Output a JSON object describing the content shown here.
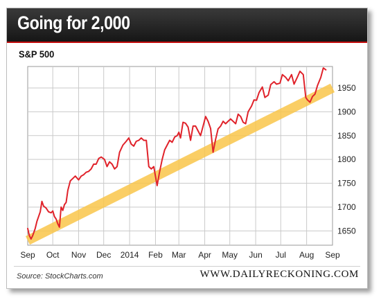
{
  "header": {
    "title": "Going for 2,000"
  },
  "footer": {
    "source": "Source: StockCharts.com",
    "site": "WWW.DAILYRECKONING.COM"
  },
  "colors": {
    "line": "#e0222a",
    "band": "#f9c64a",
    "grid": "#c9c9c9",
    "header_bg": "#1f1f1f",
    "header_rule": "#c40c0c"
  },
  "chart_data": {
    "type": "line",
    "title": "S&P 500",
    "xlabel": "",
    "ylabel": "",
    "x_ticks": [
      "Sep",
      "Oct",
      "Nov",
      "Dec",
      "2014",
      "Feb",
      "Mar",
      "Apr",
      "May",
      "Jun",
      "Jul",
      "Aug",
      "Sep"
    ],
    "y_ticks": [
      1650,
      1700,
      1750,
      1800,
      1850,
      1900,
      1950
    ],
    "xlim": [
      "2013-09-01",
      "2014-09-01"
    ],
    "ylim": [
      1620,
      1995
    ],
    "grid": true,
    "y_axis_side": "right",
    "series": [
      {
        "values": [
          [
            "2013-09-01",
            1655
          ],
          [
            "2013-09-03",
            1640
          ],
          [
            "2013-09-05",
            1633
          ],
          [
            "2013-09-07",
            1640
          ],
          [
            "2013-09-10",
            1655
          ],
          [
            "2013-09-12",
            1670
          ],
          [
            "2013-09-14",
            1680
          ],
          [
            "2013-09-16",
            1690
          ],
          [
            "2013-09-18",
            1712
          ],
          [
            "2013-09-20",
            1702
          ],
          [
            "2013-09-23",
            1698
          ],
          [
            "2013-09-26",
            1690
          ],
          [
            "2013-09-29",
            1688
          ],
          [
            "2013-10-01",
            1692
          ],
          [
            "2013-10-03",
            1680
          ],
          [
            "2013-10-05",
            1675
          ],
          [
            "2013-10-07",
            1665
          ],
          [
            "2013-10-09",
            1658
          ],
          [
            "2013-10-11",
            1700
          ],
          [
            "2013-10-13",
            1693
          ],
          [
            "2013-10-15",
            1705
          ],
          [
            "2013-10-17",
            1710
          ],
          [
            "2013-10-19",
            1735
          ],
          [
            "2013-10-22",
            1755
          ],
          [
            "2013-10-25",
            1760
          ],
          [
            "2013-10-28",
            1765
          ],
          [
            "2013-11-01",
            1757
          ],
          [
            "2013-11-04",
            1765
          ],
          [
            "2013-11-07",
            1768
          ],
          [
            "2013-11-10",
            1773
          ],
          [
            "2013-11-13",
            1775
          ],
          [
            "2013-11-16",
            1780
          ],
          [
            "2013-11-19",
            1790
          ],
          [
            "2013-11-22",
            1790
          ],
          [
            "2013-11-25",
            1802
          ],
          [
            "2013-11-28",
            1805
          ],
          [
            "2013-12-02",
            1800
          ],
          [
            "2013-12-05",
            1785
          ],
          [
            "2013-12-08",
            1795
          ],
          [
            "2013-12-11",
            1790
          ],
          [
            "2013-12-14",
            1780
          ],
          [
            "2013-12-17",
            1785
          ],
          [
            "2013-12-20",
            1815
          ],
          [
            "2013-12-24",
            1830
          ],
          [
            "2013-12-28",
            1838
          ],
          [
            "2013-12-31",
            1845
          ],
          [
            "2014-01-03",
            1832
          ],
          [
            "2014-01-06",
            1828
          ],
          [
            "2014-01-09",
            1838
          ],
          [
            "2014-01-12",
            1840
          ],
          [
            "2014-01-15",
            1845
          ],
          [
            "2014-01-18",
            1840
          ],
          [
            "2014-01-21",
            1840
          ],
          [
            "2014-01-24",
            1785
          ],
          [
            "2014-01-27",
            1780
          ],
          [
            "2014-01-30",
            1785
          ],
          [
            "2014-02-03",
            1745
          ],
          [
            "2014-02-06",
            1775
          ],
          [
            "2014-02-09",
            1800
          ],
          [
            "2014-02-12",
            1820
          ],
          [
            "2014-02-15",
            1830
          ],
          [
            "2014-02-18",
            1840
          ],
          [
            "2014-02-21",
            1836
          ],
          [
            "2014-02-24",
            1847
          ],
          [
            "2014-02-27",
            1850
          ],
          [
            "2014-03-01",
            1857
          ],
          [
            "2014-03-03",
            1845
          ],
          [
            "2014-03-06",
            1878
          ],
          [
            "2014-03-09",
            1876
          ],
          [
            "2014-03-12",
            1868
          ],
          [
            "2014-03-15",
            1840
          ],
          [
            "2014-03-18",
            1870
          ],
          [
            "2014-03-21",
            1870
          ],
          [
            "2014-03-24",
            1860
          ],
          [
            "2014-03-27",
            1850
          ],
          [
            "2014-03-30",
            1870
          ],
          [
            "2014-04-02",
            1890
          ],
          [
            "2014-04-05",
            1880
          ],
          [
            "2014-04-08",
            1865
          ],
          [
            "2014-04-11",
            1815
          ],
          [
            "2014-04-14",
            1842
          ],
          [
            "2014-04-17",
            1864
          ],
          [
            "2014-04-20",
            1870
          ],
          [
            "2014-04-23",
            1880
          ],
          [
            "2014-04-26",
            1875
          ],
          [
            "2014-04-29",
            1880
          ],
          [
            "2014-05-02",
            1885
          ],
          [
            "2014-05-05",
            1880
          ],
          [
            "2014-05-08",
            1875
          ],
          [
            "2014-05-11",
            1895
          ],
          [
            "2014-05-14",
            1890
          ],
          [
            "2014-05-17",
            1878
          ],
          [
            "2014-05-20",
            1875
          ],
          [
            "2014-05-23",
            1900
          ],
          [
            "2014-05-27",
            1912
          ],
          [
            "2014-05-30",
            1925
          ],
          [
            "2014-06-02",
            1924
          ],
          [
            "2014-06-05",
            1940
          ],
          [
            "2014-06-09",
            1952
          ],
          [
            "2014-06-12",
            1930
          ],
          [
            "2014-06-16",
            1935
          ],
          [
            "2014-06-19",
            1957
          ],
          [
            "2014-06-23",
            1963
          ],
          [
            "2014-06-26",
            1958
          ],
          [
            "2014-06-30",
            1960
          ],
          [
            "2014-07-03",
            1978
          ],
          [
            "2014-07-07",
            1972
          ],
          [
            "2014-07-10",
            1965
          ],
          [
            "2014-07-14",
            1978
          ],
          [
            "2014-07-17",
            1958
          ],
          [
            "2014-07-21",
            1973
          ],
          [
            "2014-07-24",
            1985
          ],
          [
            "2014-07-28",
            1978
          ],
          [
            "2014-07-31",
            1930
          ],
          [
            "2014-08-02",
            1925
          ],
          [
            "2014-08-05",
            1920
          ],
          [
            "2014-08-08",
            1932
          ],
          [
            "2014-08-11",
            1937
          ],
          [
            "2014-08-14",
            1955
          ],
          [
            "2014-08-18",
            1972
          ],
          [
            "2014-08-21",
            1992
          ],
          [
            "2014-08-24",
            1988
          ]
        ]
      }
    ],
    "band": {
      "start": [
        "2013-09-01",
        1630
      ],
      "end": [
        "2014-09-01",
        1950
      ],
      "half_width": 10
    }
  }
}
